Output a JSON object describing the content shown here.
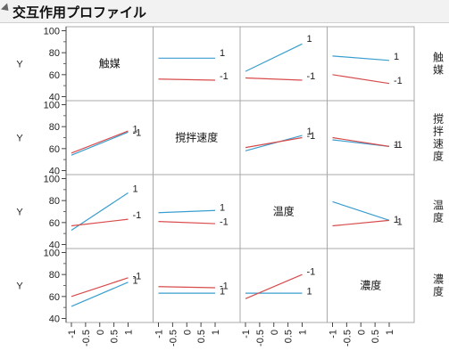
{
  "header": {
    "title": "交互作用プロファイル"
  },
  "chart_data": {
    "type": "line",
    "factors": [
      "触媒",
      "撹拌速度",
      "温度",
      "濃度"
    ],
    "ylabel": "Y",
    "ylim": [
      40,
      100
    ],
    "yticks": [
      "100",
      "80",
      "60",
      "40"
    ],
    "yticks_minor": [
      90,
      70,
      50
    ],
    "xlim": [
      -1,
      1
    ],
    "xticks": [
      "-1",
      "-0.5",
      "0",
      "0.5",
      "1"
    ],
    "levels": [
      "1",
      "-1"
    ],
    "colors": {
      "1": "#3a9ecf",
      "-1": "#d84b4b"
    },
    "panels": [
      {
        "row": 0,
        "col": 1,
        "series": [
          {
            "level": "1",
            "y": [
              75,
              75
            ],
            "label": "1",
            "label_y": 80
          },
          {
            "level": "-1",
            "y": [
              56,
              55
            ],
            "label": "-1",
            "label_y": 59
          }
        ]
      },
      {
        "row": 0,
        "col": 2,
        "series": [
          {
            "level": "1",
            "y": [
              63,
              88
            ],
            "label": "1",
            "label_y": 93
          },
          {
            "level": "-1",
            "y": [
              57,
              55
            ],
            "label": "-1",
            "label_y": 59
          }
        ]
      },
      {
        "row": 0,
        "col": 3,
        "series": [
          {
            "level": "1",
            "y": [
              77,
              73
            ],
            "label": "1",
            "label_y": 77
          },
          {
            "level": "-1",
            "y": [
              60,
              52
            ],
            "label": "-1",
            "label_y": 55
          }
        ]
      },
      {
        "row": 1,
        "col": 0,
        "series": [
          {
            "level": "1",
            "y": [
              54,
              75
            ],
            "label": "1",
            "label_y": 78
          },
          {
            "level": "-1",
            "y": [
              56,
              76
            ],
            "label": "-1",
            "label_y": 75
          }
        ]
      },
      {
        "row": 1,
        "col": 2,
        "series": [
          {
            "level": "1",
            "y": [
              58,
              72
            ],
            "label": "1",
            "label_y": 76
          },
          {
            "level": "-1",
            "y": [
              61,
              70
            ],
            "label": "-1",
            "label_y": 72
          }
        ]
      },
      {
        "row": 1,
        "col": 3,
        "series": [
          {
            "level": "1",
            "y": [
              68,
              62
            ],
            "label": "1",
            "label_y": 64
          },
          {
            "level": "-1",
            "y": [
              70,
              62
            ],
            "label": "-1",
            "label_y": 64
          }
        ]
      },
      {
        "row": 2,
        "col": 0,
        "series": [
          {
            "level": "1",
            "y": [
              53,
              87
            ],
            "label": "1",
            "label_y": 91
          },
          {
            "level": "-1",
            "y": [
              57,
              63
            ],
            "label": "-1",
            "label_y": 67
          }
        ]
      },
      {
        "row": 2,
        "col": 1,
        "series": [
          {
            "level": "1",
            "y": [
              69,
              71
            ],
            "label": "1",
            "label_y": 74
          },
          {
            "level": "-1",
            "y": [
              61,
              59
            ],
            "label": "-1",
            "label_y": 61
          }
        ]
      },
      {
        "row": 2,
        "col": 3,
        "series": [
          {
            "level": "1",
            "y": [
              79,
              62
            ],
            "label": "1",
            "label_y": 63
          },
          {
            "level": "-1",
            "y": [
              57,
              62
            ],
            "label": "-1",
            "label_y": 61
          }
        ]
      },
      {
        "row": 3,
        "col": 0,
        "series": [
          {
            "level": "1",
            "y": [
              51,
              73
            ],
            "label": "1",
            "label_y": 75
          },
          {
            "level": "-1",
            "y": [
              60,
              77
            ],
            "label": "-1",
            "label_y": 79
          }
        ]
      },
      {
        "row": 3,
        "col": 1,
        "series": [
          {
            "level": "1",
            "y": [
              63,
              63
            ],
            "label": "1",
            "label_y": 65
          },
          {
            "level": "-1",
            "y": [
              69,
              68
            ],
            "label": "-1",
            "label_y": 70
          }
        ]
      },
      {
        "row": 3,
        "col": 2,
        "series": [
          {
            "level": "1",
            "y": [
              63,
              63
            ],
            "label": "1",
            "label_y": 65
          },
          {
            "level": "-1",
            "y": [
              58,
              80
            ],
            "label": "-1",
            "label_y": 83
          }
        ]
      }
    ]
  }
}
